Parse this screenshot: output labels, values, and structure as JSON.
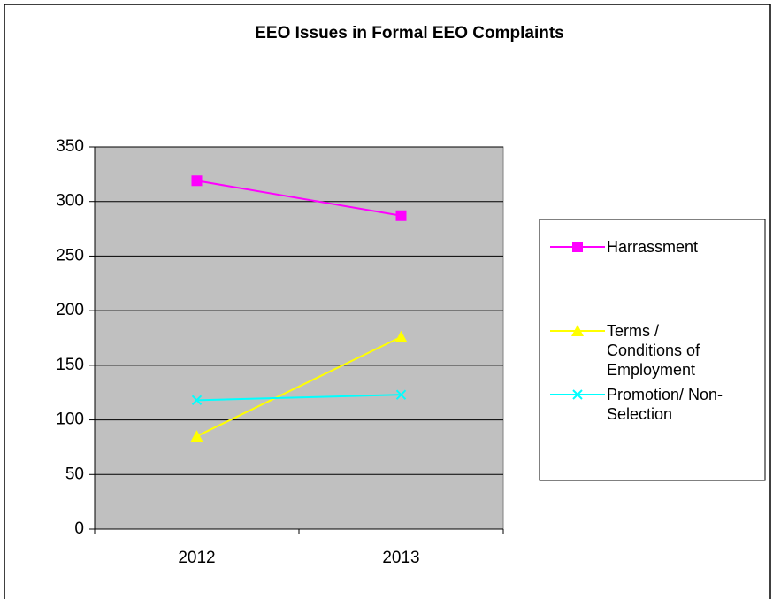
{
  "chart_data": {
    "type": "line",
    "title": "EEO Issues in Formal EEO Complaints",
    "categories": [
      "2012",
      "2013"
    ],
    "series": [
      {
        "name": "Harrassment",
        "color": "#ff00ff",
        "marker": "square",
        "values": [
          319,
          287
        ]
      },
      {
        "name": "Terms / Conditions of Employment",
        "color": "#ffff00",
        "marker": "triangle",
        "values": [
          85,
          176
        ]
      },
      {
        "name": "Promotion/ Non-Selection",
        "color": "#00ffff",
        "marker": "x",
        "values": [
          118,
          123
        ]
      }
    ],
    "ylim": [
      0,
      350
    ],
    "yticks": [
      0,
      50,
      100,
      150,
      200,
      250,
      300,
      350
    ],
    "grid": true,
    "legend": "right"
  }
}
